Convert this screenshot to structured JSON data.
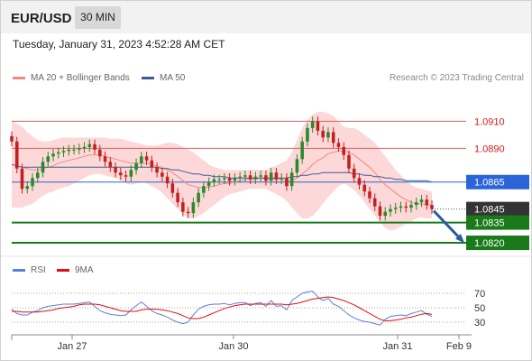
{
  "header": {
    "symbol": "EUR/USD",
    "timeframe": "30 MIN"
  },
  "timestamp": "Tuesday, January 31, 2023 4:52:28 AM CET",
  "legend": {
    "ma20_label": "MA 20 + Bollinger Bands",
    "ma50_label": "MA 50",
    "ma20_color": "#f08a80",
    "ma50_color": "#3a5a9a",
    "credit": "Research © 2023 Trading Central"
  },
  "rsi_legend": {
    "rsi_label": "RSI",
    "ma_label": "9MA",
    "rsi_color": "#5b7fd6",
    "ma_color": "#e01010"
  },
  "colors": {
    "bull": "#2a8a2a",
    "bear": "#c42020",
    "bands_fill": "#fdd8d8",
    "support": "#1a7a1a",
    "pivot": "#2a64d8",
    "resistance": "#e06060",
    "arrow": "#2a5aa0",
    "last_price": "#333333"
  },
  "chart_data": {
    "type": "candlestick",
    "symbol": "EUR/USD",
    "timeframe": "30 MIN",
    "y_range": [
      1.081,
      1.0935
    ],
    "x_ticks": [
      "Jan 27",
      "Jan 30",
      "Jan 31",
      "Feb 9"
    ],
    "levels": [
      {
        "value": 1.091,
        "label": "1.0910",
        "kind": "resistance"
      },
      {
        "value": 1.089,
        "label": "1.0890",
        "kind": "resistance"
      },
      {
        "value": 1.0865,
        "label": "1.0865",
        "kind": "pivot"
      },
      {
        "value": 1.0845,
        "label": "1.0845",
        "kind": "last"
      },
      {
        "value": 1.0835,
        "label": "1.0835",
        "kind": "support"
      },
      {
        "value": 1.082,
        "label": "1.0820",
        "kind": "support"
      }
    ],
    "closes": [
      1.0895,
      1.0875,
      1.086,
      1.0862,
      1.0868,
      1.0872,
      1.088,
      1.0884,
      1.0886,
      1.0887,
      1.0888,
      1.0889,
      1.0889,
      1.089,
      1.0891,
      1.0893,
      1.0889,
      1.0884,
      1.088,
      1.0876,
      1.0872,
      1.087,
      1.0869,
      1.0874,
      1.0879,
      1.0884,
      1.0881,
      1.0876,
      1.0872,
      1.0869,
      1.0864,
      1.0857,
      1.085,
      1.0843,
      1.0842,
      1.085,
      1.0857,
      1.0862,
      1.0865,
      1.0867,
      1.0867,
      1.0868,
      1.0866,
      1.0868,
      1.0869,
      1.087,
      1.0867,
      1.0869,
      1.087,
      1.0866,
      1.0872,
      1.0867,
      1.0868,
      1.0862,
      1.0872,
      1.0882,
      1.0895,
      1.0905,
      1.091,
      1.0903,
      1.0898,
      1.0902,
      1.0894,
      1.0891,
      1.0885,
      1.0875,
      1.0868,
      1.0863,
      1.0858,
      1.0853,
      1.0847,
      1.084,
      1.0843,
      1.0845,
      1.0846,
      1.0847,
      1.0846,
      1.0848,
      1.085,
      1.0852,
      1.0848,
      1.0845
    ],
    "ma20": [
      1.0878,
      1.0877,
      1.0876,
      1.0875,
      1.0874,
      1.0874,
      1.0875,
      1.0876,
      1.0877,
      1.0879,
      1.088,
      1.0881,
      1.0882,
      1.0883,
      1.0884,
      1.0885,
      1.0885,
      1.0885,
      1.0884,
      1.0883,
      1.0882,
      1.0881,
      1.088,
      1.0879,
      1.0879,
      1.0879,
      1.0879,
      1.0878,
      1.0877,
      1.0876,
      1.0874,
      1.0872,
      1.0869,
      1.0866,
      1.0863,
      1.0862,
      1.0861,
      1.0861,
      1.0861,
      1.0862,
      1.0863,
      1.0864,
      1.0864,
      1.0865,
      1.0866,
      1.0867,
      1.0867,
      1.0867,
      1.0868,
      1.0867,
      1.0867,
      1.0867,
      1.0867,
      1.0866,
      1.0866,
      1.0868,
      1.0871,
      1.0874,
      1.0878,
      1.0881,
      1.0883,
      1.0886,
      1.0887,
      1.0888,
      1.0888,
      1.0887,
      1.0885,
      1.0882,
      1.0879,
      1.0876,
      1.0872,
      1.0867,
      1.0863,
      1.086,
      1.0857,
      1.0854,
      1.0852,
      1.085,
      1.0849,
      1.0849,
      1.0848,
      1.0848
    ],
    "bb_upper": [
      1.091,
      1.0908,
      1.0906,
      1.0902,
      1.0899,
      1.0896,
      1.0895,
      1.0895,
      1.0896,
      1.0897,
      1.0898,
      1.0898,
      1.0898,
      1.0898,
      1.0898,
      1.0898,
      1.0898,
      1.0898,
      1.0898,
      1.0897,
      1.0897,
      1.0897,
      1.0896,
      1.0895,
      1.0894,
      1.0893,
      1.0892,
      1.0892,
      1.0892,
      1.0893,
      1.0894,
      1.0894,
      1.0893,
      1.0891,
      1.0889,
      1.0887,
      1.0884,
      1.0881,
      1.0878,
      1.0876,
      1.0875,
      1.0874,
      1.0874,
      1.0874,
      1.0874,
      1.0874,
      1.0874,
      1.0874,
      1.0874,
      1.0874,
      1.0876,
      1.0877,
      1.0879,
      1.0881,
      1.0887,
      1.0896,
      1.0905,
      1.0911,
      1.0915,
      1.0917,
      1.0917,
      1.0916,
      1.0914,
      1.091,
      1.0906,
      1.0905,
      1.0905,
      1.0903,
      1.09,
      1.0897,
      1.0894,
      1.0889,
      1.0884,
      1.0879,
      1.0874,
      1.087,
      1.0866,
      1.0863,
      1.0861,
      1.086,
      1.0859,
      1.0858
    ],
    "bb_lower": [
      1.0846,
      1.0846,
      1.0846,
      1.0848,
      1.0849,
      1.0852,
      1.0855,
      1.0857,
      1.0858,
      1.086,
      1.0861,
      1.0862,
      1.0864,
      1.0866,
      1.0868,
      1.087,
      1.0871,
      1.0871,
      1.087,
      1.0869,
      1.0868,
      1.0866,
      1.0864,
      1.0863,
      1.0864,
      1.0865,
      1.0864,
      1.0862,
      1.086,
      1.0857,
      1.0853,
      1.0849,
      1.0845,
      1.0841,
      1.0838,
      1.0838,
      1.084,
      1.0842,
      1.0845,
      1.0848,
      1.0851,
      1.0854,
      1.0856,
      1.0857,
      1.0858,
      1.0859,
      1.086,
      1.086,
      1.086,
      1.086,
      1.0858,
      1.0856,
      1.0854,
      1.0851,
      1.0846,
      1.0842,
      1.0838,
      1.0838,
      1.084,
      1.0844,
      1.0849,
      1.0854,
      1.0858,
      1.0862,
      1.0864,
      1.0862,
      1.0859,
      1.0855,
      1.085,
      1.0845,
      1.084,
      1.0835,
      1.0831,
      1.0829,
      1.083,
      1.0832,
      1.0834,
      1.0836,
      1.0838,
      1.0839,
      1.0838,
      1.0838
    ],
    "ma50": [
      1.0878,
      1.0877,
      1.0876,
      1.0876,
      1.0876,
      1.0876,
      1.0876,
      1.0876,
      1.0876,
      1.0876,
      1.0876,
      1.0876,
      1.0876,
      1.0876,
      1.0876,
      1.0876,
      1.0876,
      1.0876,
      1.0876,
      1.0876,
      1.0876,
      1.0876,
      1.0876,
      1.0876,
      1.0876,
      1.0876,
      1.0876,
      1.0876,
      1.0876,
      1.0875,
      1.0875,
      1.0874,
      1.0874,
      1.0873,
      1.0872,
      1.0871,
      1.0871,
      1.087,
      1.087,
      1.0869,
      1.0869,
      1.0869,
      1.0868,
      1.0868,
      1.0868,
      1.0868,
      1.0868,
      1.0868,
      1.0868,
      1.0868,
      1.0868,
      1.0868,
      1.0868,
      1.0868,
      1.0869,
      1.0869,
      1.087,
      1.087,
      1.0871,
      1.0871,
      1.0872,
      1.0872,
      1.0872,
      1.0872,
      1.0872,
      1.0872,
      1.0871,
      1.0871,
      1.087,
      1.087,
      1.0869,
      1.0869,
      1.0868,
      1.0868,
      1.0867,
      1.0867,
      1.0866,
      1.0866,
      1.0866,
      1.0866,
      1.0866,
      1.0865
    ],
    "forecast": {
      "from": 1.0845,
      "to": 1.082,
      "direction": "down"
    },
    "rsi_panel": {
      "levels": [
        70,
        50,
        30
      ],
      "rsi": [
        48,
        42,
        40,
        40,
        44,
        46,
        50,
        52,
        53,
        54,
        55,
        55,
        55,
        56,
        57,
        58,
        52,
        46,
        43,
        41,
        40,
        39,
        40,
        47,
        53,
        58,
        52,
        46,
        42,
        40,
        37,
        33,
        30,
        28,
        30,
        40,
        48,
        52,
        54,
        55,
        55,
        56,
        54,
        56,
        57,
        57,
        53,
        56,
        57,
        52,
        60,
        52,
        53,
        47,
        60,
        65,
        70,
        72,
        73,
        65,
        60,
        63,
        55,
        52,
        46,
        40,
        36,
        33,
        31,
        30,
        28,
        26,
        34,
        38,
        39,
        40,
        39,
        42,
        44,
        46,
        41,
        38
      ],
      "ma9": [
        45,
        45,
        44,
        44,
        44,
        44,
        45,
        46,
        47,
        49,
        50,
        51,
        52,
        54,
        55,
        55,
        55,
        54,
        52,
        50,
        48,
        46,
        45,
        45,
        45,
        47,
        48,
        48,
        48,
        47,
        46,
        44,
        42,
        39,
        36,
        35,
        35,
        37,
        40,
        43,
        46,
        49,
        51,
        53,
        54,
        55,
        55,
        55,
        55,
        55,
        55,
        55,
        55,
        54,
        55,
        56,
        58,
        60,
        62,
        63,
        64,
        65,
        64,
        62,
        60,
        57,
        54,
        50,
        46,
        42,
        38,
        34,
        32,
        32,
        33,
        34,
        36,
        37,
        39,
        41,
        42,
        41
      ]
    }
  }
}
